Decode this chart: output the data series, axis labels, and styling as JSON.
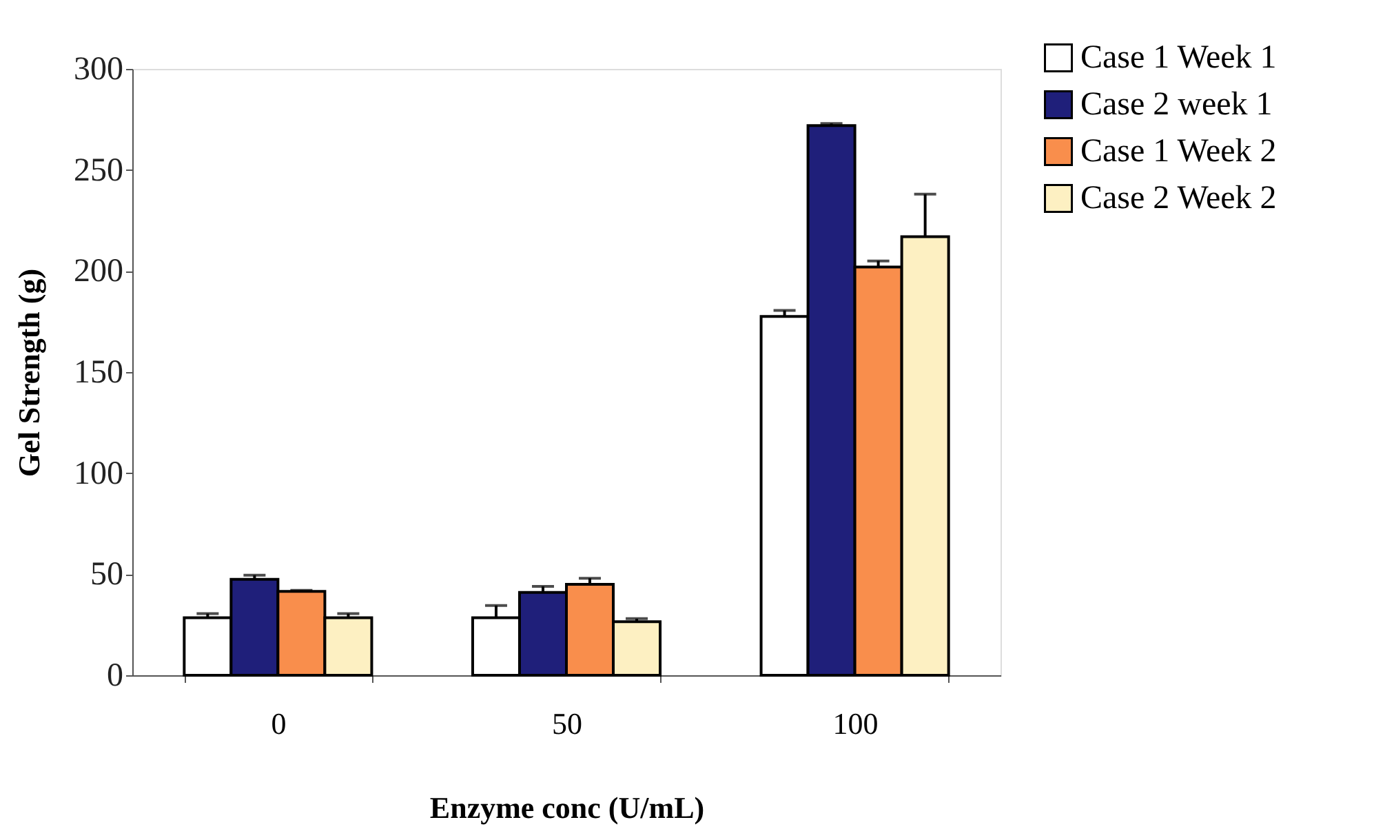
{
  "chart_data": {
    "type": "bar",
    "xlabel": "Enzyme conc (U/mL)",
    "ylabel": "Gel Strength (g)",
    "categories": [
      "0",
      "50",
      "100"
    ],
    "series": [
      {
        "name": "Case 1 Week 1",
        "color": "#ffffff",
        "values": [
          28.5,
          28.5,
          177.5
        ],
        "errors": [
          [
            28.5,
            30.5
          ],
          [
            28.5,
            34.5
          ],
          [
            177.5,
            180.5
          ]
        ]
      },
      {
        "name": "Case 2 week 1",
        "color": "#1f1f7a",
        "values": [
          47.5,
          41,
          272
        ],
        "errors": [
          [
            47.5,
            49.5
          ],
          [
            41,
            44
          ],
          [
            272,
            273
          ]
        ]
      },
      {
        "name": "Case 1 Week 2",
        "color": "#f98e4c",
        "values": [
          41.5,
          45,
          202
        ],
        "errors": [
          [
            41.5,
            42
          ],
          [
            45,
            48
          ],
          [
            202,
            205
          ]
        ]
      },
      {
        "name": "Case 2 Week 2",
        "color": "#fdf0c2",
        "values": [
          28.5,
          26.5,
          217
        ],
        "errors": [
          [
            28.5,
            30.5
          ],
          [
            26.5,
            28
          ],
          [
            217,
            238
          ]
        ]
      }
    ],
    "ylim": [
      0,
      300
    ],
    "yticks": [
      0,
      50,
      100,
      150,
      200,
      250,
      300
    ],
    "grid": false,
    "legend": "top right"
  }
}
